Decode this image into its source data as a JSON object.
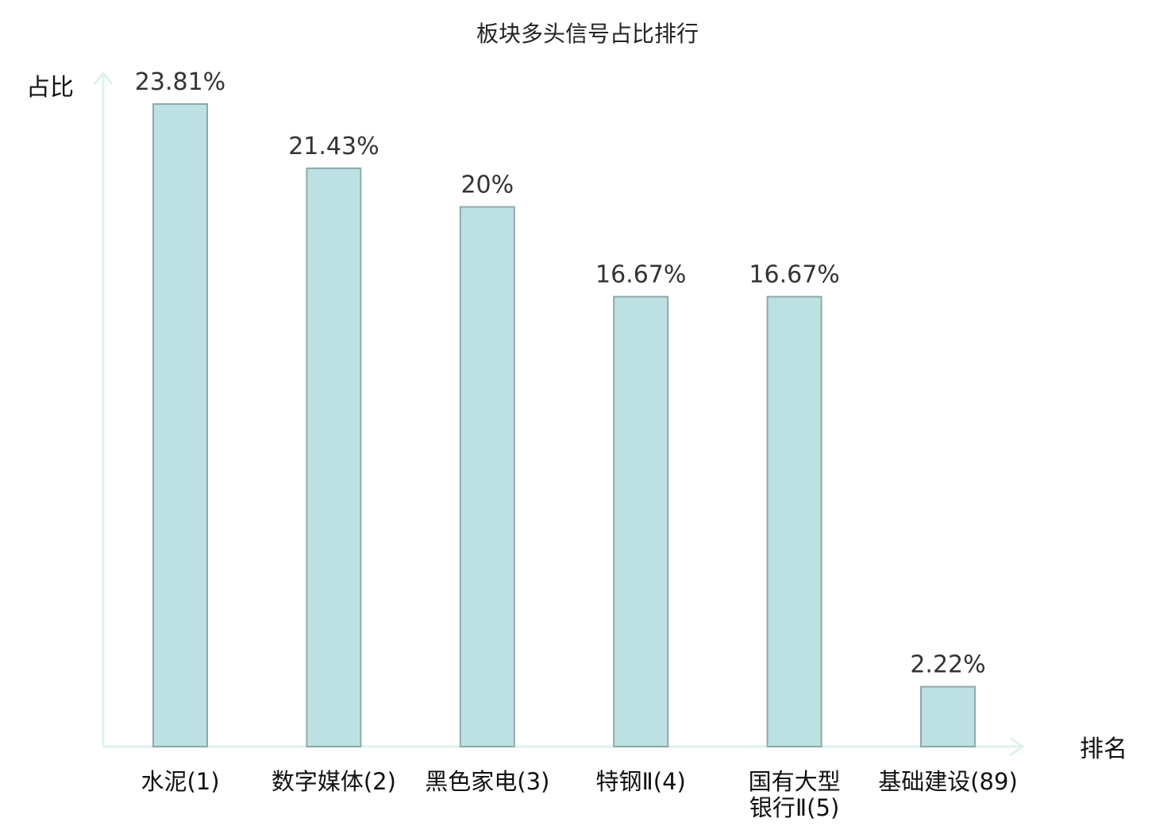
{
  "chart_data": {
    "type": "bar",
    "title": "板块多头信号占比排行",
    "ylabel": "占比",
    "xlabel": "排名",
    "ylim": [
      0,
      25
    ],
    "grid": false,
    "categories": [
      [
        "水泥(1)"
      ],
      [
        "数字媒体(2)"
      ],
      [
        "黑色家电(3)"
      ],
      [
        "特钢Ⅱ(4)"
      ],
      [
        "国有大型",
        "银行Ⅱ(5)"
      ],
      [
        "基础建设(89)"
      ]
    ],
    "values": [
      23.81,
      21.43,
      20,
      16.67,
      16.67,
      2.22
    ],
    "value_labels": [
      "23.81%",
      "21.43%",
      "20%",
      "16.67%",
      "16.67%",
      "2.22%"
    ],
    "highlight_index": 5,
    "colors": {
      "bar_fill": "#bde1e3",
      "bar_stroke": "#8fa9a9",
      "axis": "#dff2ee",
      "highlight_text": "#e0242b",
      "text": "#111111"
    }
  }
}
